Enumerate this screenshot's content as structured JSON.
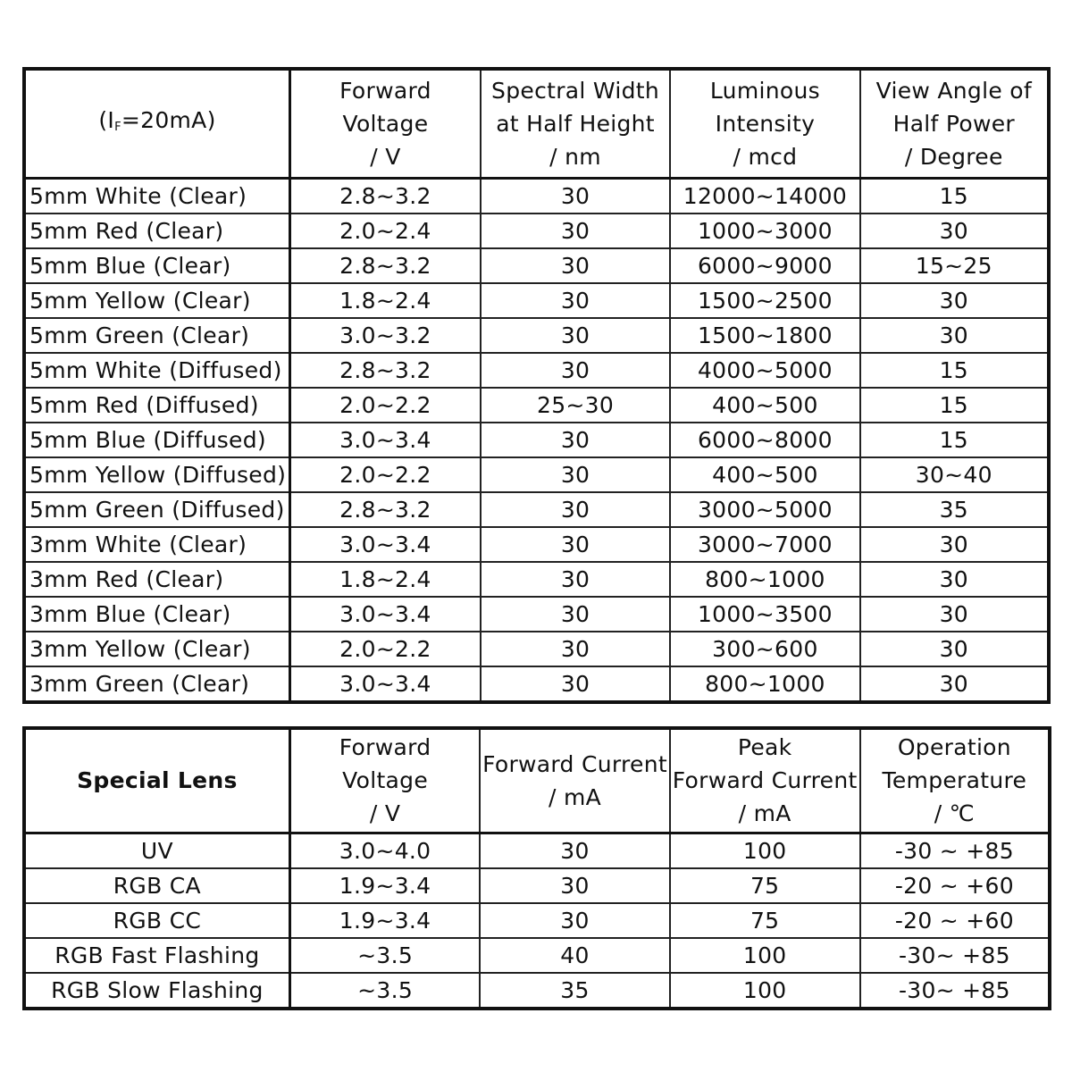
{
  "table1": {
    "corner": {
      "prefix": "(I",
      "sub": "F",
      "suffix": "=20mA)"
    },
    "headers": [
      [
        "Forward",
        "Voltage",
        "/ V"
      ],
      [
        "Spectral Width",
        "at Half Height",
        "/ nm"
      ],
      [
        "Luminous",
        "Intensity",
        "/ mcd"
      ],
      [
        "View Angle of",
        "Half Power",
        "/ Degree"
      ]
    ],
    "rows": [
      [
        "5mm White (Clear)",
        "2.8~3.2",
        "30",
        "12000~14000",
        "15"
      ],
      [
        "5mm Red (Clear)",
        "2.0~2.4",
        "30",
        "1000~3000",
        "30"
      ],
      [
        "5mm Blue (Clear)",
        "2.8~3.2",
        "30",
        "6000~9000",
        "15~25"
      ],
      [
        "5mm Yellow (Clear)",
        "1.8~2.4",
        "30",
        "1500~2500",
        "30"
      ],
      [
        "5mm Green (Clear)",
        "3.0~3.2",
        "30",
        "1500~1800",
        "30"
      ],
      [
        "5mm White (Diffused)",
        "2.8~3.2",
        "30",
        "4000~5000",
        "15"
      ],
      [
        "5mm Red (Diffused)",
        "2.0~2.2",
        "25~30",
        "400~500",
        "15"
      ],
      [
        "5mm Blue (Diffused)",
        "3.0~3.4",
        "30",
        "6000~8000",
        "15"
      ],
      [
        "5mm Yellow (Diffused)",
        "2.0~2.2",
        "30",
        "400~500",
        "30~40"
      ],
      [
        "5mm Green (Diffused)",
        "2.8~3.2",
        "30",
        "3000~5000",
        "35"
      ],
      [
        "3mm White (Clear)",
        "3.0~3.4",
        "30",
        "3000~7000",
        "30"
      ],
      [
        "3mm Red (Clear)",
        "1.8~2.4",
        "30",
        "800~1000",
        "30"
      ],
      [
        "3mm Blue (Clear)",
        "3.0~3.4",
        "30",
        "1000~3500",
        "30"
      ],
      [
        "3mm Yellow (Clear)",
        "2.0~2.2",
        "30",
        "300~600",
        "30"
      ],
      [
        "3mm Green (Clear)",
        "3.0~3.4",
        "30",
        "800~1000",
        "30"
      ]
    ]
  },
  "table2": {
    "corner": "Special Lens",
    "headers": [
      [
        "Forward",
        "Voltage",
        "/ V"
      ],
      [
        "Forward Current",
        "/ mA"
      ],
      [
        "Peak",
        "Forward Current",
        "/ mA"
      ],
      [
        "Operation",
        "Temperature",
        "/ ℃"
      ]
    ],
    "rows": [
      [
        "UV",
        "3.0~4.0",
        "30",
        "100",
        "-30 ~ +85"
      ],
      [
        "RGB CA",
        "1.9~3.4",
        "30",
        "75",
        "-20 ~ +60"
      ],
      [
        "RGB CC",
        "1.9~3.4",
        "30",
        "75",
        "-20 ~ +60"
      ],
      [
        "RGB Fast Flashing",
        "~3.5",
        "40",
        "100",
        "-30~ +85"
      ],
      [
        "RGB Slow Flashing",
        "~3.5",
        "35",
        "100",
        "-30~ +85"
      ]
    ]
  }
}
